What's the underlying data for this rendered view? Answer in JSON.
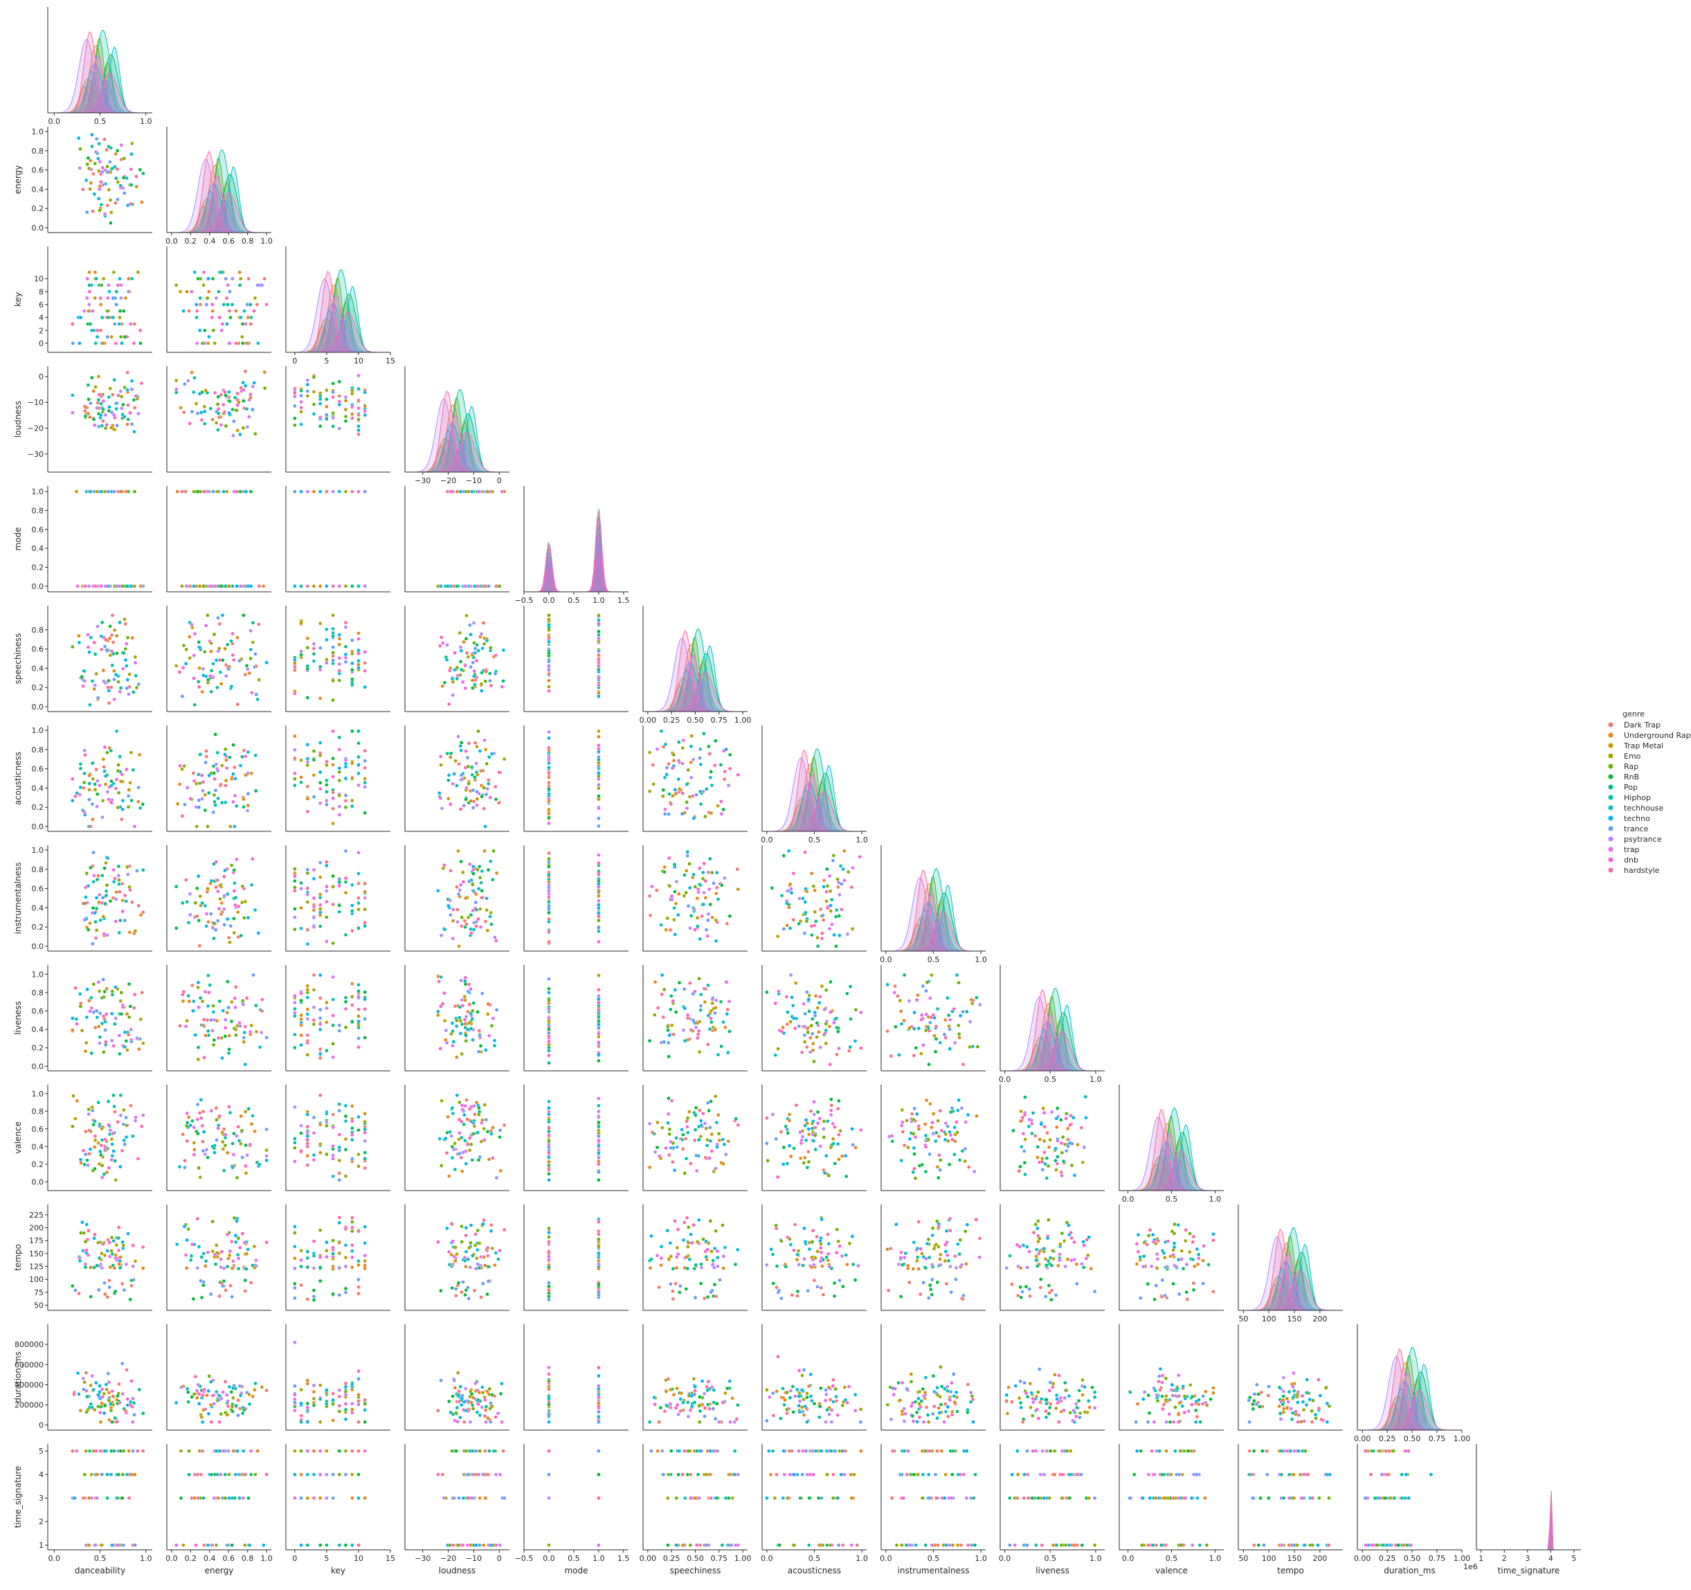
{
  "chart_data": {
    "type": "scatter",
    "subtype": "pairplot-corner",
    "title": "",
    "legend": {
      "title": "genre",
      "placement": "right",
      "entries": [
        {
          "name": "Dark Trap",
          "color": "#f8766d"
        },
        {
          "name": "Underground Rap",
          "color": "#e7861b"
        },
        {
          "name": "Trap Metal",
          "color": "#c99800"
        },
        {
          "name": "Emo",
          "color": "#a3a500"
        },
        {
          "name": "Rap",
          "color": "#6bb100"
        },
        {
          "name": "RnB",
          "color": "#00ba38"
        },
        {
          "name": "Pop",
          "color": "#00bf7d"
        },
        {
          "name": "Hiphop",
          "color": "#00c0af"
        },
        {
          "name": "techhouse",
          "color": "#00bcd8"
        },
        {
          "name": "techno",
          "color": "#00b0f6"
        },
        {
          "name": "trance",
          "color": "#619cff"
        },
        {
          "name": "psytrance",
          "color": "#b983ff"
        },
        {
          "name": "trap",
          "color": "#e76bf3"
        },
        {
          "name": "dnb",
          "color": "#fd61d1"
        },
        {
          "name": "hardstyle",
          "color": "#ff67a4"
        }
      ]
    },
    "variables": [
      {
        "name": "danceability",
        "range": [
          -0.07,
          1.07
        ],
        "ticks": [
          0.0,
          0.5,
          1.0
        ],
        "tick_labels": [
          "0.0",
          "0.5",
          "1.0"
        ],
        "typical": [
          0.2,
          0.97
        ]
      },
      {
        "name": "energy",
        "range": [
          -0.05,
          1.05
        ],
        "ticks": [
          0.0,
          0.2,
          0.4,
          0.6,
          0.8,
          1.0
        ],
        "tick_labels": [
          "0.0",
          "0.2",
          "0.4",
          "0.6",
          "0.8",
          "1.0"
        ],
        "typical": [
          0.05,
          1.0
        ]
      },
      {
        "name": "key",
        "range": [
          -1.4,
          15.0
        ],
        "ticks": [
          0,
          5,
          10,
          15
        ],
        "tick_labels": [
          "0",
          "5",
          "10",
          "15"
        ],
        "y_ticks": [
          0,
          2,
          4,
          6,
          8,
          10
        ],
        "y_tick_labels": [
          "0",
          "2",
          "4",
          "6",
          "8",
          "10"
        ],
        "discrete": [
          0,
          1,
          2,
          3,
          4,
          5,
          6,
          7,
          8,
          9,
          10,
          11
        ],
        "typical": [
          0,
          11
        ]
      },
      {
        "name": "loudness",
        "range": [
          -37,
          4
        ],
        "ticks": [
          -30,
          -20,
          -10,
          0
        ],
        "tick_labels": [
          "−30",
          "−20",
          "−10",
          "0"
        ],
        "typical": [
          -24,
          2
        ]
      },
      {
        "name": "mode",
        "range": [
          -0.5,
          1.6
        ],
        "ticks": [
          -0.5,
          0.0,
          0.5,
          1.0,
          1.5
        ],
        "tick_labels": [
          "−0.5",
          "0.0",
          "0.5",
          "1.0",
          "1.5"
        ],
        "y_range": [
          -0.06,
          1.06
        ],
        "y_ticks": [
          0.0,
          0.2,
          0.4,
          0.6,
          0.8,
          1.0
        ],
        "y_tick_labels": [
          "0.0",
          "0.2",
          "0.4",
          "0.6",
          "0.8",
          "1.0"
        ],
        "discrete": [
          0,
          1
        ],
        "typical": [
          0,
          1
        ]
      },
      {
        "name": "speechiness",
        "range": [
          -0.05,
          1.05
        ],
        "ticks": [
          0.0,
          0.25,
          0.5,
          0.75,
          1.0
        ],
        "tick_labels": [
          "0.00",
          "0.25",
          "0.50",
          "0.75",
          "1.00"
        ],
        "y_ticks": [
          0.0,
          0.2,
          0.4,
          0.6,
          0.8
        ],
        "y_tick_labels": [
          "0.0",
          "0.2",
          "0.4",
          "0.6",
          "0.8"
        ],
        "typical": [
          0.02,
          0.95
        ]
      },
      {
        "name": "acousticness",
        "range": [
          -0.05,
          1.05
        ],
        "ticks": [
          0.0,
          0.5,
          1.0
        ],
        "tick_labels": [
          "0.0",
          "0.5",
          "1.0"
        ],
        "y_ticks": [
          0.0,
          0.2,
          0.4,
          0.6,
          0.8,
          1.0
        ],
        "y_tick_labels": [
          "0.0",
          "0.2",
          "0.4",
          "0.6",
          "0.8",
          "1.0"
        ],
        "typical": [
          0.0,
          0.99
        ]
      },
      {
        "name": "instrumentalness",
        "range": [
          -0.05,
          1.05
        ],
        "ticks": [
          0.0,
          0.5,
          1.0
        ],
        "tick_labels": [
          "0.0",
          "0.5",
          "1.0"
        ],
        "y_ticks": [
          0.0,
          0.2,
          0.4,
          0.6,
          0.8,
          1.0
        ],
        "y_tick_labels": [
          "0.0",
          "0.2",
          "0.4",
          "0.6",
          "0.8",
          "1.0"
        ],
        "typical": [
          0.0,
          0.99
        ]
      },
      {
        "name": "liveness",
        "range": [
          -0.05,
          1.1
        ],
        "ticks": [
          0.0,
          0.5,
          1.0
        ],
        "tick_labels": [
          "0.0",
          "0.5",
          "1.0"
        ],
        "y_ticks": [
          0.0,
          0.2,
          0.4,
          0.6,
          0.8,
          1.0
        ],
        "y_tick_labels": [
          "0.0",
          "0.2",
          "0.4",
          "0.6",
          "0.8",
          "1.0"
        ],
        "typical": [
          0.02,
          0.99
        ]
      },
      {
        "name": "valence",
        "range": [
          -0.1,
          1.1
        ],
        "ticks": [
          0.0,
          0.5,
          1.0
        ],
        "tick_labels": [
          "0.0",
          "0.5",
          "1.0"
        ],
        "y_ticks": [
          0.0,
          0.2,
          0.4,
          0.6,
          0.8,
          1.0
        ],
        "y_tick_labels": [
          "0.0",
          "0.2",
          "0.4",
          "0.6",
          "0.8",
          "1.0"
        ],
        "typical": [
          0.02,
          0.98
        ]
      },
      {
        "name": "tempo",
        "range": [
          40,
          245
        ],
        "ticks": [
          50,
          100,
          150,
          200
        ],
        "tick_labels": [
          "50",
          "100",
          "150",
          "200"
        ],
        "y_ticks": [
          50,
          75,
          100,
          125,
          150,
          175,
          200,
          225
        ],
        "y_tick_labels": [
          "50",
          "75",
          "100",
          "125",
          "150",
          "175",
          "200",
          "225"
        ],
        "typical": [
          57,
          220
        ]
      },
      {
        "name": "duration_ms",
        "range": [
          -50000,
          1000000
        ],
        "ticks": [
          0,
          250000,
          500000,
          750000,
          1000000
        ],
        "tick_labels": [
          "0.00",
          "0.25",
          "0.50",
          "0.75",
          "1.00"
        ],
        "offset_label": "1e6",
        "y_ticks": [
          0,
          200000,
          400000,
          600000,
          800000
        ],
        "y_tick_labels": [
          "0",
          "200000",
          "400000",
          "600000",
          "800000"
        ],
        "typical": [
          30000,
          900000
        ]
      },
      {
        "name": "time_signature",
        "range": [
          0.8,
          5.3
        ],
        "ticks": [
          1,
          2,
          3,
          4,
          5
        ],
        "tick_labels": [
          "1",
          "2",
          "3",
          "4",
          "5"
        ],
        "discrete": [
          1,
          3,
          4,
          5
        ],
        "typical": [
          1,
          5
        ]
      }
    ],
    "grid": false
  }
}
